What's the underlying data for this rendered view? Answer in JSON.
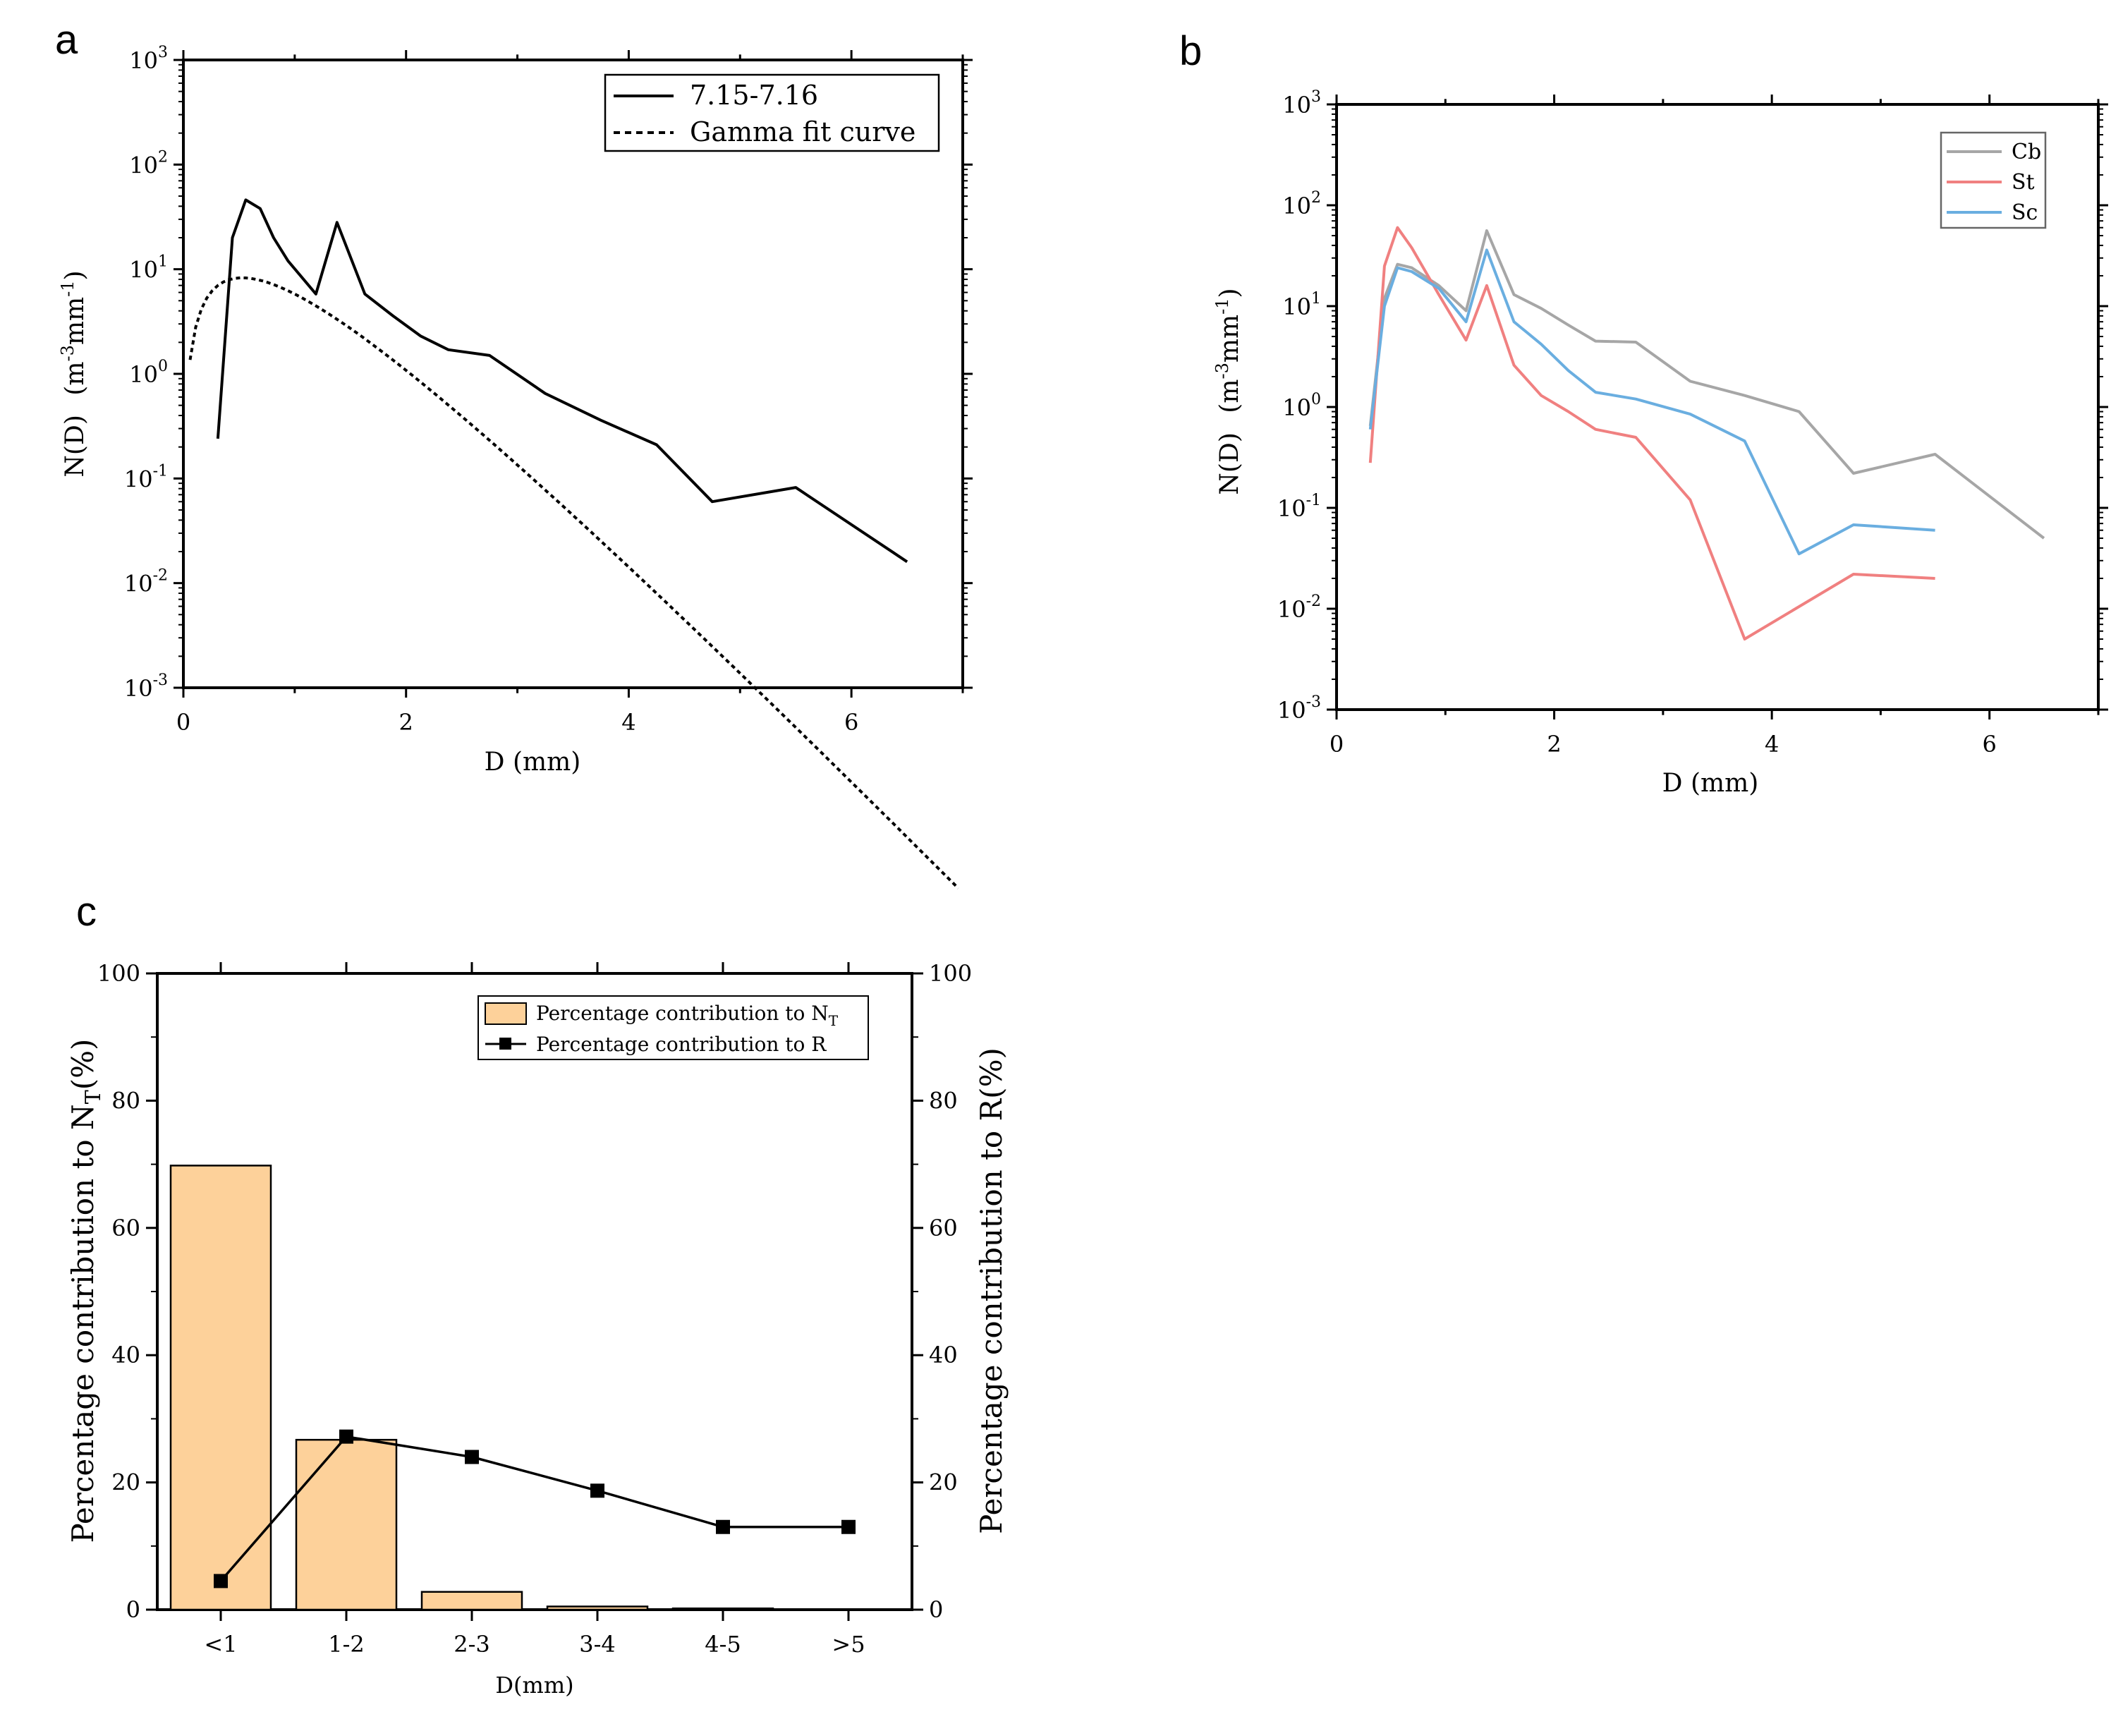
{
  "chart_data": [
    {
      "panel": "a",
      "type": "line",
      "xlabel": "D (mm)",
      "ylabel": "N(D) (m^-3 mm^-1)",
      "xlim": [
        0,
        7
      ],
      "ylim": [
        0.001,
        1000
      ],
      "yscale": "log",
      "xticks": [
        0,
        2,
        4,
        6
      ],
      "legend_position": "top-right",
      "series": [
        {
          "name": "7.15-7.16",
          "style": "solid",
          "color": "#000000",
          "points": [
            [
              0.31,
              0.24
            ],
            [
              0.44,
              20
            ],
            [
              0.56,
              46
            ],
            [
              0.69,
              38
            ],
            [
              0.81,
              20
            ],
            [
              0.94,
              12
            ],
            [
              1.19,
              5.8
            ],
            [
              1.38,
              28
            ],
            [
              1.63,
              5.8
            ],
            [
              1.88,
              3.6
            ],
            [
              2.13,
              2.3
            ],
            [
              2.38,
              1.7
            ],
            [
              2.75,
              1.5
            ],
            [
              3.25,
              0.65
            ],
            [
              3.75,
              0.36
            ],
            [
              4.25,
              0.21
            ],
            [
              4.75,
              0.06
            ],
            [
              5.5,
              0.082
            ],
            [
              6.5,
              0.016
            ]
          ]
        },
        {
          "name": "Gamma fit curve",
          "style": "dashed",
          "color": "#000000",
          "gamma": {
            "N0": 82,
            "mu": 1.4,
            "lambda": 2.65
          }
        }
      ]
    },
    {
      "panel": "b",
      "type": "line",
      "xlabel": "D (mm)",
      "ylabel": "N(D) (m^-3 mm^-1)",
      "xlim": [
        0,
        7
      ],
      "ylim": [
        0.001,
        1000
      ],
      "yscale": "log",
      "xticks": [
        0,
        2,
        4,
        6
      ],
      "legend_position": "top-right",
      "series": [
        {
          "name": "Cb",
          "color": "#a6a6a6",
          "points": [
            [
              0.31,
              0.65
            ],
            [
              0.44,
              12
            ],
            [
              0.56,
              26
            ],
            [
              0.69,
              24
            ],
            [
              0.94,
              16
            ],
            [
              1.19,
              9
            ],
            [
              1.38,
              56
            ],
            [
              1.63,
              13
            ],
            [
              1.88,
              9.5
            ],
            [
              2.13,
              6.5
            ],
            [
              2.38,
              4.5
            ],
            [
              2.75,
              4.4
            ],
            [
              3.25,
              1.8
            ],
            [
              3.75,
              1.3
            ],
            [
              4.25,
              0.9
            ],
            [
              4.75,
              0.22
            ],
            [
              5.5,
              0.34
            ],
            [
              6.5,
              0.05
            ]
          ]
        },
        {
          "name": "St",
          "color": "#f08080",
          "points": [
            [
              0.31,
              0.28
            ],
            [
              0.44,
              25
            ],
            [
              0.56,
              60
            ],
            [
              0.69,
              38
            ],
            [
              0.94,
              13
            ],
            [
              1.19,
              4.6
            ],
            [
              1.38,
              16
            ],
            [
              1.63,
              2.6
            ],
            [
              1.88,
              1.3
            ],
            [
              2.13,
              0.9
            ],
            [
              2.38,
              0.6
            ],
            [
              2.75,
              0.5
            ],
            [
              3.25,
              0.12
            ],
            [
              3.75,
              0.005
            ],
            [
              4.25,
              0.0105
            ],
            [
              4.75,
              0.022
            ],
            [
              5.5,
              0.02
            ]
          ]
        },
        {
          "name": "Sc",
          "color": "#6aaee0",
          "points": [
            [
              0.31,
              0.6
            ],
            [
              0.44,
              10
            ],
            [
              0.56,
              24
            ],
            [
              0.69,
              22
            ],
            [
              0.94,
              15
            ],
            [
              1.19,
              7
            ],
            [
              1.38,
              36
            ],
            [
              1.63,
              7
            ],
            [
              1.88,
              4.2
            ],
            [
              2.13,
              2.3
            ],
            [
              2.38,
              1.4
            ],
            [
              2.75,
              1.2
            ],
            [
              3.25,
              0.85
            ],
            [
              3.75,
              0.46
            ],
            [
              4.25,
              0.035
            ],
            [
              4.75,
              0.068
            ],
            [
              5.5,
              0.06
            ]
          ]
        }
      ]
    },
    {
      "panel": "c",
      "type": "bar",
      "xlabel": "D(mm)",
      "ylabel_left": "Percentage contribution to N_T(%)",
      "ylabel_right": "Percentage contribution to R(%)",
      "ylim": [
        0,
        100
      ],
      "yticks": [
        0,
        20,
        40,
        60,
        80,
        100
      ],
      "categories": [
        "<1",
        "1-2",
        "2-3",
        "3-4",
        "4-5",
        ">5"
      ],
      "legend_position": "top-right",
      "series": [
        {
          "name": "Percentage contribution to N_T",
          "kind": "bar",
          "color": "#fdd19a",
          "values": [
            69.8,
            26.7,
            2.8,
            0.5,
            0.2,
            0.05
          ]
        },
        {
          "name": "Percentage contribution to R",
          "kind": "line",
          "color": "#000000",
          "values": [
            4.5,
            27.2,
            24,
            18.7,
            13,
            13
          ]
        }
      ]
    }
  ],
  "labels": {
    "panel_a": "a",
    "panel_b": "b",
    "panel_c": "c",
    "a_xlabel": "D (mm)",
    "a_ylabel": "N(D)",
    "a_ylabel_unit": "(m",
    "a_ylabel_exp1": "-3",
    "a_ylabel_mid": "mm",
    "a_ylabel_exp2": "-1",
    "a_ylabel_end": ")",
    "a_legend_1": "7.15-7.16",
    "a_legend_2": "Gamma fit curve",
    "b_xlabel": "D (mm)",
    "b_ylabel": "N(D)",
    "b_ylabel_unit": "(m",
    "b_ylabel_exp1": "-3",
    "b_ylabel_mid": "mm",
    "b_ylabel_exp2": "-1",
    "b_ylabel_end": ")",
    "b_legend_1": "Cb",
    "b_legend_2": "St",
    "b_legend_3": "Sc",
    "c_xlabel": "D(mm)",
    "c_ylabel_left": "Percentage contribution to N",
    "c_ylabel_left_sub": "T",
    "c_ylabel_left_end": "(%)",
    "c_ylabel_right": "Percentage contribution to R(%)",
    "c_legend_1": "Percentage contribution to N",
    "c_legend_1_sub": "T",
    "c_legend_2": "Percentage contribution to R"
  }
}
